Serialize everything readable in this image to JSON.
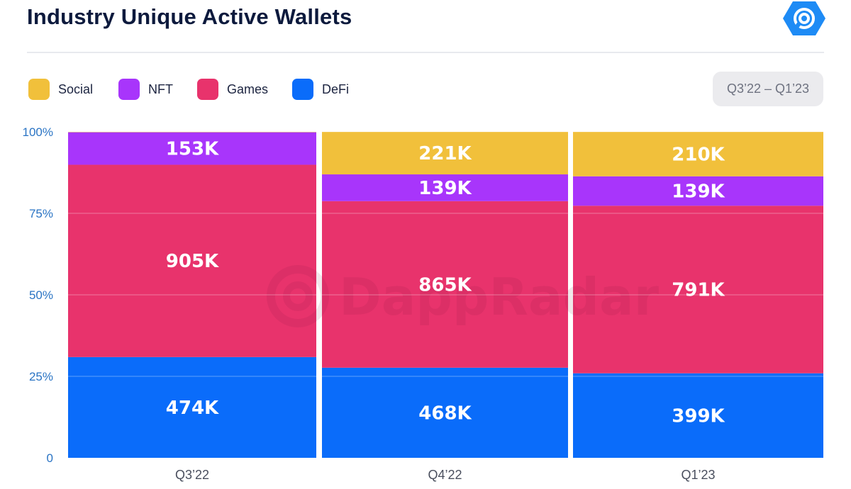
{
  "header": {
    "title": "Industry Unique Active Wallets",
    "date_range": "Q3’22 – Q1’23"
  },
  "watermark": {
    "text": "DappRadar"
  },
  "colors": {
    "Social": "#f1c03b",
    "NFT": "#a835fb",
    "Games": "#e8336c",
    "DeFi": "#0a6cfa",
    "logo": "#1e8bf5"
  },
  "chart_data": {
    "type": "bar",
    "stacked": true,
    "normalized": true,
    "title": "Industry Unique Active Wallets",
    "categories": [
      "Q3’22",
      "Q4’22",
      "Q1’23"
    ],
    "series": [
      {
        "name": "DeFi",
        "values": [
          474,
          468,
          399
        ],
        "labels": [
          "474K",
          "468K",
          "399K"
        ]
      },
      {
        "name": "Games",
        "values": [
          905,
          865,
          791
        ],
        "labels": [
          "905K",
          "865K",
          "791K"
        ]
      },
      {
        "name": "NFT",
        "values": [
          153,
          139,
          139
        ],
        "labels": [
          "153K",
          "139K",
          "139K"
        ]
      },
      {
        "name": "Social",
        "values": [
          2,
          221,
          210
        ],
        "labels": [
          "",
          "221K",
          "210K"
        ]
      }
    ],
    "y_ticks": [
      "0",
      "25%",
      "50%",
      "75%",
      "100%"
    ],
    "ylim": [
      0,
      100
    ],
    "legend_position": "top-left",
    "grid": true
  }
}
